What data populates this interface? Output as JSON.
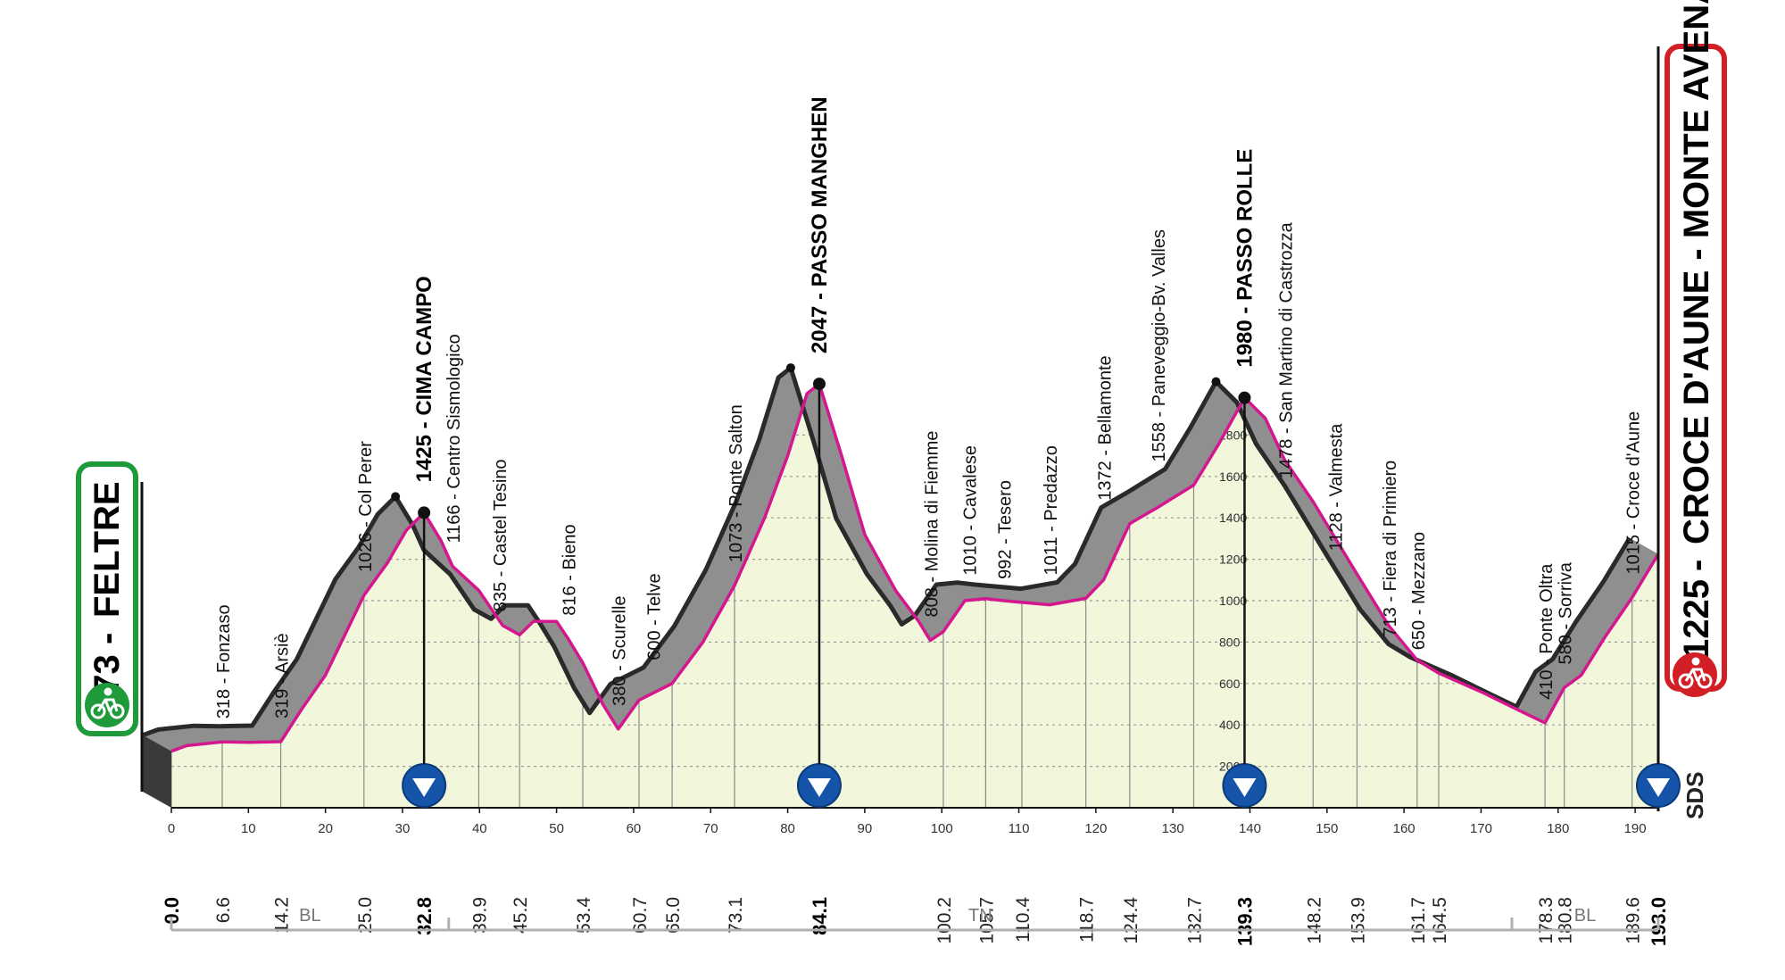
{
  "chart_data": {
    "type": "area",
    "title": "",
    "xlabel": "",
    "ylabel": "",
    "xlim": [
      0,
      193
    ],
    "ylim": [
      0,
      2100
    ],
    "profile": [
      [
        0,
        273
      ],
      [
        2,
        300
      ],
      [
        6.6,
        318
      ],
      [
        10,
        316
      ],
      [
        14.2,
        319
      ],
      [
        17,
        480
      ],
      [
        20,
        640
      ],
      [
        25,
        1026
      ],
      [
        28,
        1180
      ],
      [
        30.5,
        1340
      ],
      [
        32.8,
        1425
      ],
      [
        35,
        1290
      ],
      [
        36.5,
        1166
      ],
      [
        39.9,
        1050
      ],
      [
        43,
        880
      ],
      [
        45.2,
        835
      ],
      [
        47,
        900
      ],
      [
        50,
        900
      ],
      [
        51.5,
        816
      ],
      [
        53.4,
        700
      ],
      [
        56,
        500
      ],
      [
        58,
        380
      ],
      [
        60.7,
        520
      ],
      [
        65,
        600
      ],
      [
        69,
        800
      ],
      [
        73.1,
        1073
      ],
      [
        77,
        1400
      ],
      [
        80,
        1700
      ],
      [
        82.5,
        2000
      ],
      [
        84.1,
        2047
      ],
      [
        87,
        1700
      ],
      [
        90,
        1320
      ],
      [
        94,
        1050
      ],
      [
        97,
        900
      ],
      [
        98.5,
        808
      ],
      [
        100.2,
        850
      ],
      [
        103,
        1000
      ],
      [
        105.7,
        1010
      ],
      [
        108,
        1000
      ],
      [
        110.4,
        992
      ],
      [
        114,
        980
      ],
      [
        118.7,
        1011
      ],
      [
        121,
        1100
      ],
      [
        124.4,
        1372
      ],
      [
        128,
        1450
      ],
      [
        132.7,
        1558
      ],
      [
        136,
        1760
      ],
      [
        139.3,
        1980
      ],
      [
        142,
        1880
      ],
      [
        144.5,
        1680
      ],
      [
        148.2,
        1478
      ],
      [
        153.9,
        1128
      ],
      [
        158,
        880
      ],
      [
        161.7,
        713
      ],
      [
        164.5,
        650
      ],
      [
        170,
        560
      ],
      [
        175.5,
        460
      ],
      [
        178.3,
        410
      ],
      [
        180.8,
        580
      ],
      [
        183,
        640
      ],
      [
        186,
        820
      ],
      [
        189.6,
        1015
      ],
      [
        193,
        1225
      ]
    ],
    "altitude_ticks": [
      200,
      400,
      600,
      800,
      1000,
      1200,
      1400,
      1600,
      1800
    ],
    "km_ticks": [
      0,
      10,
      20,
      30,
      40,
      50,
      60,
      70,
      80,
      90,
      100,
      110,
      120,
      130,
      140,
      150,
      160,
      170,
      180,
      190
    ],
    "km_labels": [
      {
        "km": 0,
        "text": "0.0",
        "bold": true
      },
      {
        "km": 6.6,
        "text": "6.6"
      },
      {
        "km": 14.2,
        "text": "14.2"
      },
      {
        "km": 25.0,
        "text": "25.0"
      },
      {
        "km": 32.8,
        "text": "32.8",
        "bold": true
      },
      {
        "km": 39.9,
        "text": "39.9"
      },
      {
        "km": 45.2,
        "text": "45.2"
      },
      {
        "km": 53.4,
        "text": "53.4"
      },
      {
        "km": 60.7,
        "text": "60.7"
      },
      {
        "km": 65.0,
        "text": "65.0"
      },
      {
        "km": 73.1,
        "text": "73.1"
      },
      {
        "km": 84.1,
        "text": "84.1",
        "bold": true
      },
      {
        "km": 100.2,
        "text": "100.2"
      },
      {
        "km": 105.7,
        "text": "105.7"
      },
      {
        "km": 110.4,
        "text": "110.4"
      },
      {
        "km": 118.7,
        "text": "118.7"
      },
      {
        "km": 124.4,
        "text": "124.4"
      },
      {
        "km": 132.7,
        "text": "132.7"
      },
      {
        "km": 139.3,
        "text": "139.3",
        "bold": true
      },
      {
        "km": 148.2,
        "text": "148.2"
      },
      {
        "km": 153.9,
        "text": "153.9"
      },
      {
        "km": 161.7,
        "text": "161.7"
      },
      {
        "km": 164.5,
        "text": "164.5"
      },
      {
        "km": 178.3,
        "text": "178.3"
      },
      {
        "km": 180.8,
        "text": "180.8"
      },
      {
        "km": 189.6,
        "text": "189.6"
      },
      {
        "km": 193.0,
        "text": "193.0",
        "bold": true
      }
    ],
    "waypoints": [
      {
        "km": 6.6,
        "alt": 318,
        "text": "318 - Fonzaso"
      },
      {
        "km": 14.2,
        "alt": 319,
        "text": "319 - Arsiè"
      },
      {
        "km": 25.0,
        "alt": 1026,
        "text": "1026 - Col Perer"
      },
      {
        "km": 32.8,
        "alt": 1425,
        "text": "1425 - CIMA CAMPO",
        "bold": true
      },
      {
        "km": 36.5,
        "alt": 1166,
        "text": "1166 - Centro Sismologico"
      },
      {
        "km": 42.5,
        "alt": 835,
        "text": "835 - Castel Tesino"
      },
      {
        "km": 51.5,
        "alt": 816,
        "text": "816 - Bieno"
      },
      {
        "km": 58.0,
        "alt": 380,
        "text": "380 - Scurelle"
      },
      {
        "km": 62.5,
        "alt": 600,
        "text": "600 - Telve"
      },
      {
        "km": 73.1,
        "alt": 1073,
        "text": "1073 - Ponte Salton"
      },
      {
        "km": 84.1,
        "alt": 2047,
        "text": "2047 - PASSO MANGHEN",
        "bold": true
      },
      {
        "km": 98.5,
        "alt": 808,
        "text": "808 - Molina di Fiemme"
      },
      {
        "km": 103.5,
        "alt": 1010,
        "text": "1010 - Cavalese"
      },
      {
        "km": 108.0,
        "alt": 992,
        "text": "992 - Tesero"
      },
      {
        "km": 114.0,
        "alt": 1011,
        "text": "1011 - Predazzo"
      },
      {
        "km": 121.0,
        "alt": 1372,
        "text": "1372 - Bellamonte"
      },
      {
        "km": 128.0,
        "alt": 1558,
        "text": "1558 - Paneveggio-Bv. Valles"
      },
      {
        "km": 139.3,
        "alt": 1980,
        "text": "1980 - PASSO ROLLE",
        "bold": true
      },
      {
        "km": 144.5,
        "alt": 1478,
        "text": "1478 - San Martino di Castrozza"
      },
      {
        "km": 151.0,
        "alt": 1128,
        "text": "1128 - Valmesta"
      },
      {
        "km": 158.0,
        "alt": 713,
        "text": "713 - Fiera di Primiero"
      },
      {
        "km": 161.7,
        "alt": 650,
        "text": "650 - Mezzano"
      },
      {
        "km": 178.3,
        "alt": 410,
        "text": "410 - Ponte Oltra"
      },
      {
        "km": 180.8,
        "alt": 580,
        "text": "580 - Sorriva"
      },
      {
        "km": 189.6,
        "alt": 1015,
        "text": "1015 - Croce d'Aune"
      }
    ],
    "gpm_markers_km": [
      32.8,
      84.1,
      139.3,
      193.0
    ],
    "regions": [
      {
        "from": 0,
        "to": 36,
        "label": "BL"
      },
      {
        "from": 36,
        "to": 174,
        "label": "TN"
      },
      {
        "from": 174,
        "to": 193,
        "label": "BL"
      }
    ],
    "start": {
      "alt": "273",
      "name": "FELTRE"
    },
    "finish": {
      "alt": "1225",
      "name": "CROCE D'AUNE - MONTE AVENA"
    },
    "brand": "SDS",
    "colors": {
      "profile_top": "#8f8f8f",
      "profile_wall": "#2a2a2a",
      "fill": "#f2f7dc",
      "route_line": "#d4168f",
      "start_green": "#1f9a3a",
      "finish_red": "#d21f26",
      "marker_blue": "#1554a8"
    }
  }
}
